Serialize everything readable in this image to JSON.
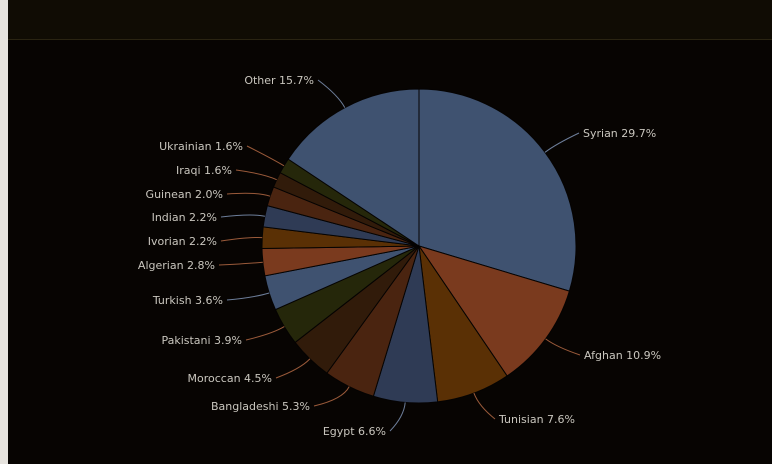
{
  "chart_data": {
    "type": "pie",
    "title": "",
    "slices": [
      {
        "label": "Syrian 29.7%",
        "value": 29.7,
        "color": "#3f5270"
      },
      {
        "label": "Afghan 10.9%",
        "value": 10.9,
        "color": "#7a3a1e"
      },
      {
        "label": "Tunisian 7.6%",
        "value": 7.6,
        "color": "#5a3005"
      },
      {
        "label": "Egypt 6.6%",
        "value": 6.6,
        "color": "#2f3b55"
      },
      {
        "label": "Bangladeshi 5.3%",
        "value": 5.3,
        "color": "#4a2410"
      },
      {
        "label": "Moroccan 4.5%",
        "value": 4.5,
        "color": "#311b0a"
      },
      {
        "label": "Pakistani 3.9%",
        "value": 3.9,
        "color": "#25270a"
      },
      {
        "label": "Turkish 3.6%",
        "value": 3.6,
        "color": "#3f5270"
      },
      {
        "label": "Algerian 2.8%",
        "value": 2.8,
        "color": "#7a3a1e"
      },
      {
        "label": "Ivorian 2.2%",
        "value": 2.2,
        "color": "#5a3005"
      },
      {
        "label": "Indian 2.2%",
        "value": 2.2,
        "color": "#2f3b55"
      },
      {
        "label": "Guinean 2.0%",
        "value": 2.0,
        "color": "#4a2410"
      },
      {
        "label": "Iraqi 1.6%",
        "value": 1.6,
        "color": "#311b0a"
      },
      {
        "label": "Ukrainian 1.6%",
        "value": 1.6,
        "color": "#25270a"
      },
      {
        "label": "Other 15.7%",
        "value": 15.7,
        "color": "#3f5270"
      }
    ]
  }
}
